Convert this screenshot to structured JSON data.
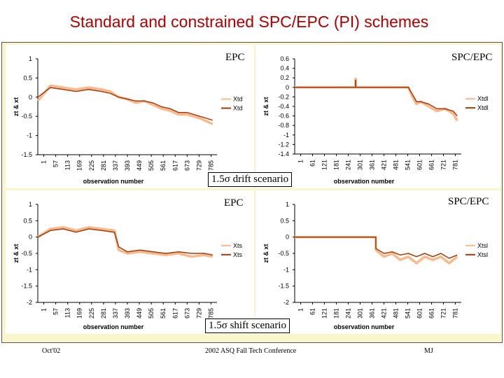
{
  "slide": {
    "title": "Standard and constrained SPC/EPC (PI) schemes",
    "scenario_drift": "1.5σ drift scenario",
    "scenario_shift": "1.5σ shift scenario",
    "footer_left": "Oct'02",
    "footer_center": "2002 ASQ Fall Tech Conference",
    "footer_right": "MJ"
  },
  "colors": {
    "dark": "#a33a0a",
    "light": "#f8b98c",
    "frame": "#f8f6ca",
    "title": "#b00000"
  },
  "chart_data": [
    {
      "id": "drift-epc",
      "type": "line",
      "title": "EPC",
      "ylabel": "zt & xt",
      "xlabel": "observation number",
      "ylim": [
        -1.5,
        1
      ],
      "yticks": [
        "1",
        "0.5",
        "0",
        "-0.5",
        "-1",
        "-1.5"
      ],
      "xticks": [
        "1",
        "57",
        "113",
        "169",
        "225",
        "281",
        "337",
        "393",
        "449",
        "505",
        "561",
        "617",
        "673",
        "729",
        "785"
      ],
      "xlim": [
        1,
        840
      ],
      "series": [
        {
          "name": "Xtd",
          "color": "light",
          "x": [
            1,
            60,
            120,
            180,
            240,
            300,
            340,
            380,
            420,
            460,
            500,
            540,
            580,
            620,
            660,
            700,
            760,
            820
          ],
          "y": [
            -0.1,
            0.3,
            0.25,
            0.2,
            0.25,
            0.2,
            0.15,
            0.0,
            -0.05,
            -0.15,
            -0.1,
            -0.2,
            -0.3,
            -0.35,
            -0.45,
            -0.45,
            -0.55,
            -0.7
          ]
        },
        {
          "name": "Xtd",
          "color": "dark",
          "x": [
            1,
            60,
            120,
            180,
            240,
            300,
            340,
            380,
            420,
            460,
            500,
            540,
            580,
            620,
            660,
            700,
            760,
            820
          ],
          "y": [
            0.0,
            0.25,
            0.2,
            0.15,
            0.2,
            0.15,
            0.1,
            0.0,
            -0.05,
            -0.1,
            -0.1,
            -0.15,
            -0.25,
            -0.3,
            -0.4,
            -0.4,
            -0.5,
            -0.6
          ]
        }
      ],
      "legend": [
        "Xtd",
        "Xtd"
      ]
    },
    {
      "id": "drift-spcepc",
      "type": "line",
      "title": "SPC/EPC",
      "ylabel": "zt & xt",
      "xlabel": "observation number",
      "ylim": [
        -1.4,
        0.6
      ],
      "yticks": [
        "0.6",
        "0.4",
        "0.2",
        "0",
        "-0.2",
        "-0.4",
        "-0.6",
        "-0.8",
        "-1",
        "-1.2",
        "-1.4"
      ],
      "xticks": [
        "1",
        "61",
        "121",
        "181",
        "241",
        "301",
        "361",
        "421",
        "481",
        "541",
        "601",
        "661",
        "721",
        "781"
      ],
      "xlim": [
        1,
        820
      ],
      "series": [
        {
          "name": "Xtdl",
          "color": "light",
          "x": [
            1,
            300,
            300,
            301,
            301,
            560,
            580,
            600,
            620,
            660,
            700,
            740,
            780,
            800
          ],
          "y": [
            0,
            0,
            0.18,
            0.18,
            0,
            0,
            -0.2,
            -0.35,
            -0.3,
            -0.4,
            -0.5,
            -0.45,
            -0.55,
            -0.7
          ]
        },
        {
          "name": "Xtdl",
          "color": "dark",
          "x": [
            1,
            300,
            300,
            301,
            301,
            560,
            580,
            600,
            620,
            660,
            700,
            740,
            780,
            800
          ],
          "y": [
            0,
            0,
            0.15,
            0.15,
            0,
            0,
            -0.15,
            -0.3,
            -0.3,
            -0.35,
            -0.45,
            -0.45,
            -0.5,
            -0.6
          ]
        }
      ],
      "legend": [
        "Xtdl",
        "Xtdl"
      ]
    },
    {
      "id": "shift-epc",
      "type": "line",
      "title": "EPC",
      "ylabel": "zt & xt",
      "xlabel": "observation number",
      "ylim": [
        -2,
        1
      ],
      "yticks": [
        "1",
        "0.5",
        "0",
        "-0.5",
        "-1",
        "-1.5",
        "-2"
      ],
      "xticks": [
        "1",
        "57",
        "113",
        "169",
        "225",
        "281",
        "337",
        "393",
        "449",
        "505",
        "561",
        "617",
        "673",
        "729",
        "785"
      ],
      "xlim": [
        1,
        840
      ],
      "series": [
        {
          "name": "Xts",
          "color": "light",
          "x": [
            1,
            60,
            120,
            180,
            240,
            300,
            360,
            380,
            420,
            480,
            540,
            600,
            660,
            720,
            780,
            820
          ],
          "y": [
            0.0,
            0.25,
            0.3,
            0.2,
            0.3,
            0.25,
            0.2,
            -0.4,
            -0.5,
            -0.45,
            -0.5,
            -0.55,
            -0.5,
            -0.6,
            -0.55,
            -0.6
          ]
        },
        {
          "name": "Xts",
          "color": "dark",
          "x": [
            1,
            60,
            120,
            180,
            240,
            300,
            360,
            380,
            420,
            480,
            540,
            600,
            660,
            720,
            780,
            820
          ],
          "y": [
            0.0,
            0.2,
            0.25,
            0.15,
            0.25,
            0.2,
            0.15,
            -0.3,
            -0.45,
            -0.4,
            -0.45,
            -0.5,
            -0.45,
            -0.5,
            -0.5,
            -0.55
          ]
        }
      ],
      "legend": [
        "Xts",
        "Xts"
      ]
    },
    {
      "id": "shift-spcepc",
      "type": "line",
      "title": "SPC/EPC",
      "ylabel": "zt & xt",
      "xlabel": "observation number",
      "ylim": [
        -2,
        1
      ],
      "yticks": [
        "1",
        "0.5",
        "0",
        "-0.5",
        "-1",
        "-1.5",
        "-2"
      ],
      "xticks": [
        "1",
        "61",
        "121",
        "181",
        "241",
        "301",
        "361",
        "421",
        "481",
        "541",
        "601",
        "661",
        "721",
        "781"
      ],
      "xlim": [
        1,
        820
      ],
      "series": [
        {
          "name": "Xtsl",
          "color": "light",
          "x": [
            1,
            400,
            400,
            440,
            480,
            520,
            560,
            600,
            640,
            680,
            720,
            760,
            800
          ],
          "y": [
            0,
            0,
            -0.4,
            -0.6,
            -0.5,
            -0.7,
            -0.6,
            -0.8,
            -0.6,
            -0.7,
            -0.6,
            -0.8,
            -0.6
          ]
        },
        {
          "name": "Xtsl",
          "color": "dark",
          "x": [
            1,
            400,
            400,
            440,
            480,
            520,
            560,
            600,
            640,
            680,
            720,
            760,
            800
          ],
          "y": [
            0,
            0,
            -0.35,
            -0.5,
            -0.45,
            -0.55,
            -0.5,
            -0.6,
            -0.5,
            -0.6,
            -0.5,
            -0.65,
            -0.55
          ]
        }
      ],
      "legend": [
        "Xtsl",
        "Xtsl"
      ]
    }
  ]
}
